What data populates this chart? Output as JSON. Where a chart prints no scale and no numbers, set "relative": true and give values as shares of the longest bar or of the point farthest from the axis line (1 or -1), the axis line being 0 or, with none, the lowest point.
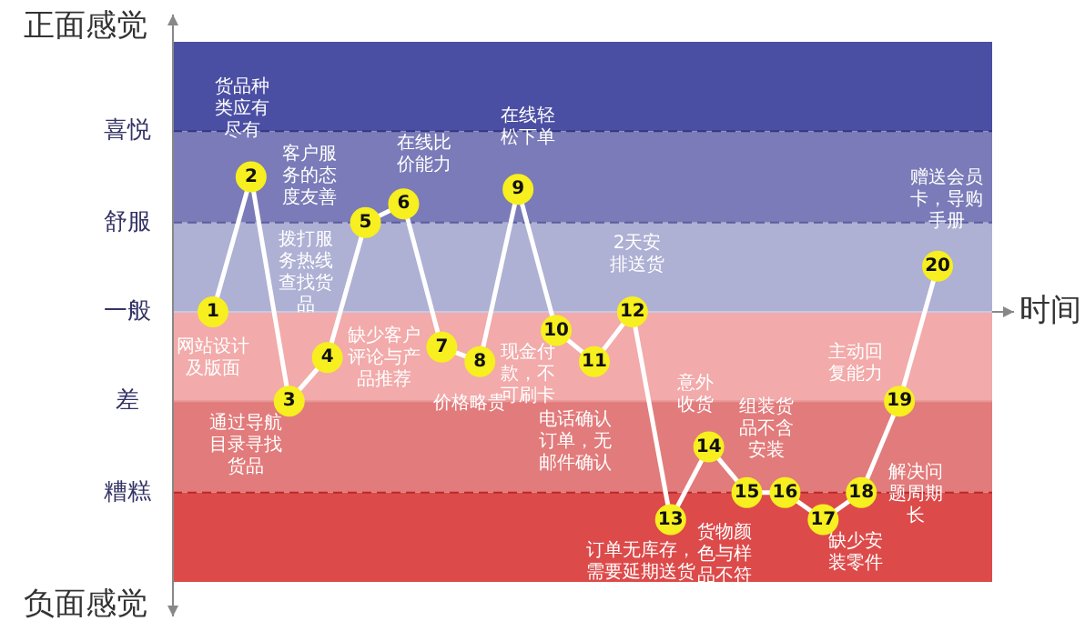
{
  "chart_data": {
    "type": "line",
    "relative": true,
    "xlabel": "时间",
    "categories": [
      "1",
      "2",
      "3",
      "4",
      "5",
      "6",
      "7",
      "8",
      "9",
      "10",
      "11",
      "12",
      "13",
      "14",
      "15",
      "16",
      "17",
      "18",
      "19",
      "20"
    ],
    "series": [
      {
        "color": "#f7ef1f",
        "values": [
          0,
          0.65,
          -0.43,
          -0.22,
          0.43,
          0.52,
          -0.17,
          -0.24,
          0.59,
          -0.09,
          -0.24,
          0,
          -1,
          -0.65,
          -0.87,
          -0.87,
          -1,
          -0.87,
          -0.43,
          0.22
        ]
      }
    ],
    "marker": "circle",
    "tick_labels": false,
    "bands": [
      {
        "axis": "y",
        "from": 0.87,
        "to": 1.3,
        "color": "#4b4fa3"
      },
      {
        "axis": "y",
        "from": 0.43,
        "to": 0.87,
        "color": "#7a7bb8"
      },
      {
        "axis": "y",
        "from": 0,
        "to": 0.43,
        "color": "#aeb0d4"
      },
      {
        "axis": "y",
        "from": -0.43,
        "to": 0,
        "color": "#f2aaaa"
      },
      {
        "axis": "y",
        "from": -0.87,
        "to": -0.43,
        "color": "#e27b7b"
      },
      {
        "axis": "y",
        "from": -1.3,
        "to": -0.87,
        "color": "#dd4a4a"
      }
    ],
    "ref_lines": [
      {
        "axis": "y",
        "value": 0.87,
        "label": "喜悦",
        "color": "#34377e",
        "line_style": "dashed"
      },
      {
        "axis": "y",
        "value": 0.43,
        "label": "舒服",
        "color": "#5b5d9c",
        "line_style": "dashed"
      },
      {
        "axis": "y",
        "value": 0,
        "label": "一般",
        "color": "#c8c9e2",
        "line_style": "solid"
      },
      {
        "axis": "y",
        "value": -0.43,
        "label": "差",
        "color": "#e89696",
        "line_style": "solid"
      },
      {
        "axis": "y",
        "value": -0.87,
        "label": "糟糕",
        "color": "#b82a2a",
        "line_style": "dashed"
      }
    ],
    "annotations": [
      "网站设计及版面",
      "货品种类应有尽有",
      "通过导航目录寻找货品",
      "拨打服务热线查找货品",
      "客户服务的态度友善",
      "在线比价能力",
      "缺少客户评论与产品推荐",
      "价格略贵",
      "在线轻松下单",
      "现金付款，不可刷卡",
      "2天安排送货",
      "电话确认订单，无邮件确认",
      "订单无库存，需要延期送货",
      "意外收货",
      "货物颜色与样品不符",
      "组装货品不含安装",
      "缺少安装零件",
      "解决问题周期长",
      "主动回复能力",
      "赠送会员卡，导购手册",
      "正面感觉",
      "负面感觉"
    ]
  }
}
